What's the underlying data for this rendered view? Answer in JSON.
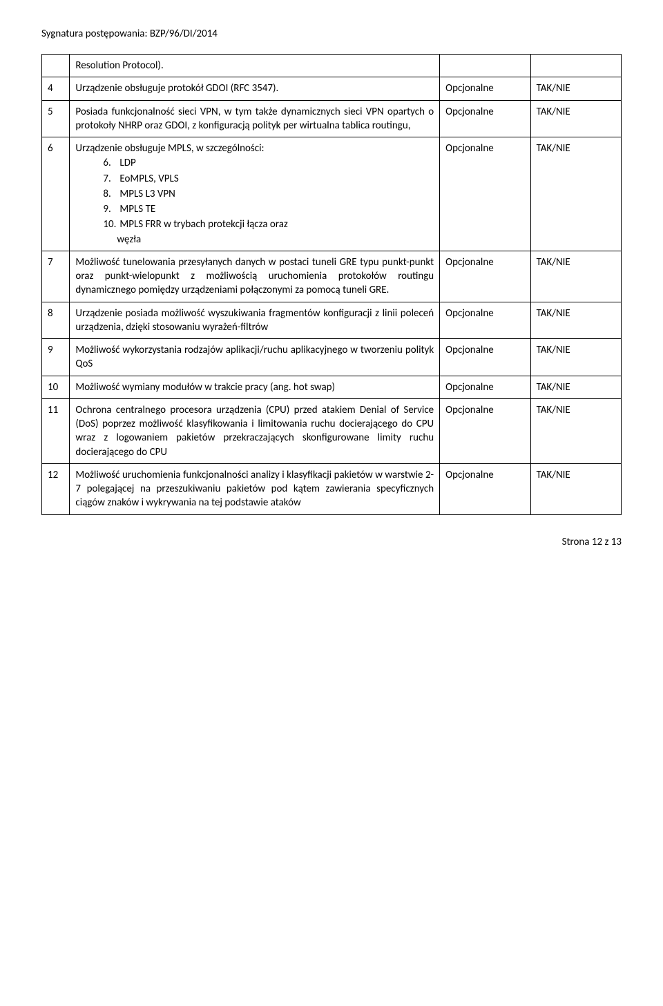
{
  "header": "Sygnatura postępowania: BZP/96/DI/2014",
  "footer": "Strona 12 z 13",
  "col_opt": "Opcjonalne",
  "col_val": "TAK/NIE",
  "rows": {
    "r0": {
      "num": "",
      "desc": "Resolution Protocol).",
      "opt": "",
      "val": ""
    },
    "r4": {
      "num": "4",
      "desc": "Urządzenie obsługuje protokół GDOI (RFC 3547)."
    },
    "r5": {
      "num": "5",
      "desc": "Posiada funkcjonalność sieci VPN, w tym także dynamicznych sieci VPN opartych o protokoły NHRP oraz GDOI, z konfiguracją polityk per wirtualna tablica routingu,"
    },
    "r6": {
      "num": "6",
      "lead": "Urządzenie obsługuje MPLS, w szczególności:",
      "items": [
        {
          "n": "6.",
          "t": "LDP"
        },
        {
          "n": "7.",
          "t": "EoMPLS, VPLS"
        },
        {
          "n": "8.",
          "t": "MPLS L3 VPN"
        },
        {
          "n": "9.",
          "t": "MPLS TE"
        },
        {
          "n": "10.",
          "t": "MPLS FRR w trybach protekcji łącza oraz"
        }
      ],
      "tail": "węzła"
    },
    "r7": {
      "num": "7",
      "desc": "Możliwość tunelowania przesyłanych danych w postaci tuneli GRE typu punkt-punkt oraz punkt-wielopunkt z możliwością uruchomienia protokołów routingu dynamicznego pomiędzy urządzeniami połączonymi za pomocą tuneli GRE."
    },
    "r8": {
      "num": "8",
      "desc": "Urządzenie posiada możliwość wyszukiwania fragmentów konfiguracji z linii poleceń urządzenia, dzięki stosowaniu wyrażeń-filtrów"
    },
    "r9": {
      "num": "9",
      "desc": "Możliwość wykorzystania rodzajów aplikacji/ruchu aplikacyjnego w tworzeniu polityk QoS"
    },
    "r10": {
      "num": "10",
      "desc": "Możliwość wymiany modułów w trakcie pracy (ang. hot swap)"
    },
    "r11": {
      "num": "11",
      "desc": "Ochrona centralnego procesora urządzenia (CPU) przed atakiem Denial of Service (DoS) poprzez możliwość klasyfikowania i limitowania ruchu docierającego do CPU wraz z logowaniem pakietów przekraczających skonfigurowane limity ruchu docierającego do CPU"
    },
    "r12": {
      "num": "12",
      "desc": "Możliwość uruchomienia funkcjonalności analizy i klasyfikacji pakietów w warstwie 2-7 polegającej na przeszukiwaniu pakietów pod kątem zawierania specyficznych ciągów znaków i wykrywania na tej podstawie ataków"
    }
  }
}
